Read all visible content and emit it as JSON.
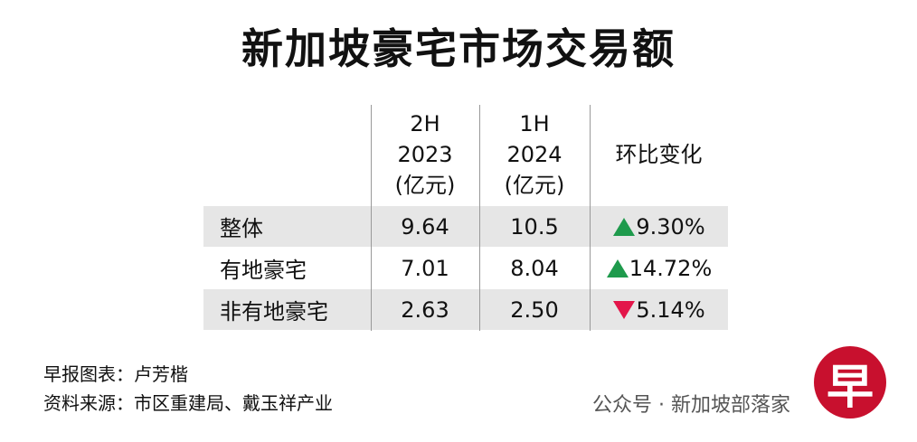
{
  "title": "新加坡豪宅市场交易额",
  "table": {
    "header": [
      [],
      [
        "2H",
        "2023",
        "(亿元)"
      ],
      [
        "1H",
        "2024",
        "(亿元)"
      ],
      [
        "环比变化"
      ]
    ],
    "rows": [
      {
        "label": "整体",
        "cells": [
          "9.64",
          "10.5"
        ],
        "change": "9.30%",
        "trend": "up"
      },
      {
        "label": "有地豪宅",
        "cells": [
          "7.01",
          "8.04"
        ],
        "change": "14.72%",
        "trend": "up"
      },
      {
        "label": "非有地豪宅",
        "cells": [
          "2.63",
          "2.50"
        ],
        "change": "5.14%",
        "trend": "down"
      }
    ],
    "colors": {
      "up": "#1e9a4c",
      "down": "#e3164a",
      "band": "#e6e6e6"
    }
  },
  "footer": {
    "credit": "早报图表：卢芳楷",
    "source": "资料来源：市区重建局、戴玉祥产业"
  },
  "watermark": "公众号 · 新加坡部落家",
  "logo": "早"
}
